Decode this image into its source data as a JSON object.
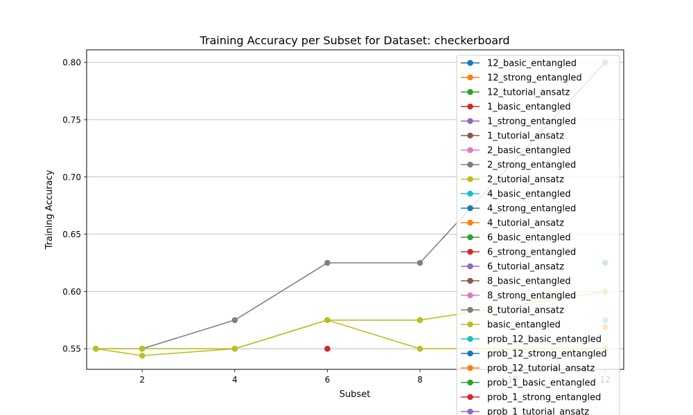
{
  "chart_data": {
    "type": "line",
    "title": "Training Accuracy per Subset for Dataset: checkerboard",
    "xlabel": "Subset",
    "ylabel": "Training Accuracy",
    "xlim": [
      0.8,
      12.4
    ],
    "ylim": [
      0.532,
      0.811
    ],
    "xticks": [
      2,
      4,
      6,
      8,
      10,
      12
    ],
    "xtick_labels": [
      "2",
      "4",
      "6",
      "8",
      "10",
      "12"
    ],
    "yticks": [
      0.55,
      0.6,
      0.65,
      0.7,
      0.75,
      0.8
    ],
    "ytick_labels": [
      "0.55",
      "0.60",
      "0.65",
      "0.70",
      "0.75",
      "0.80"
    ],
    "grid": "horizontal",
    "legend_position": "upper-right",
    "series": [
      {
        "name": "12_basic_entangled",
        "color": "#1f77b4",
        "x": [],
        "y": []
      },
      {
        "name": "12_strong_entangled",
        "color": "#ff7f0e",
        "x": [],
        "y": []
      },
      {
        "name": "12_tutorial_ansatz",
        "color": "#2ca02c",
        "x": [],
        "y": []
      },
      {
        "name": "1_basic_entangled",
        "color": "#d62728",
        "x": [
          6
        ],
        "y": [
          0.55
        ]
      },
      {
        "name": "1_strong_entangled",
        "color": "#9467bd",
        "x": [],
        "y": []
      },
      {
        "name": "1_tutorial_ansatz",
        "color": "#8c564b",
        "x": [],
        "y": []
      },
      {
        "name": "2_basic_entangled",
        "color": "#e377c2",
        "x": [
          8
        ],
        "y": [
          0.575
        ]
      },
      {
        "name": "2_strong_entangled",
        "color": "#7f7f7f",
        "x": [
          1,
          2,
          4,
          6,
          8,
          12
        ],
        "y": [
          0.55,
          0.55,
          0.575,
          0.625,
          0.625,
          0.8
        ]
      },
      {
        "name": "2_tutorial_ansatz",
        "color": "#bcbd22",
        "x": [
          1,
          2,
          4,
          6,
          8,
          12
        ],
        "y": [
          0.55,
          0.55,
          0.55,
          0.575,
          0.575,
          0.6
        ]
      },
      {
        "name": "4_basic_entangled",
        "color": "#17becf",
        "x": [
          12
        ],
        "y": [
          0.575
        ]
      },
      {
        "name": "4_strong_entangled",
        "color": "#1f77b4",
        "x": [
          12
        ],
        "y": [
          0.625
        ]
      },
      {
        "name": "4_tutorial_ansatz",
        "color": "#ff7f0e",
        "x": [
          12
        ],
        "y": [
          0.569
        ]
      },
      {
        "name": "6_basic_entangled",
        "color": "#2ca02c",
        "x": [],
        "y": []
      },
      {
        "name": "6_strong_entangled",
        "color": "#d62728",
        "x": [],
        "y": []
      },
      {
        "name": "6_tutorial_ansatz",
        "color": "#9467bd",
        "x": [],
        "y": []
      },
      {
        "name": "8_basic_entangled",
        "color": "#8c564b",
        "x": [],
        "y": []
      },
      {
        "name": "8_strong_entangled",
        "color": "#e377c2",
        "x": [],
        "y": []
      },
      {
        "name": "8_tutorial_ansatz",
        "color": "#7f7f7f",
        "x": [],
        "y": []
      },
      {
        "name": "basic_entangled",
        "color": "#bcbd22",
        "x": [
          1,
          2,
          4,
          6,
          8,
          12
        ],
        "y": [
          0.55,
          0.544,
          0.55,
          0.575,
          0.55,
          0.55
        ]
      },
      {
        "name": "prob_12_basic_entangled",
        "color": "#17becf",
        "x": [],
        "y": []
      },
      {
        "name": "prob_12_strong_entangled",
        "color": "#1f77b4",
        "x": [],
        "y": []
      },
      {
        "name": "prob_12_tutorial_ansatz",
        "color": "#ff7f0e",
        "x": [],
        "y": []
      },
      {
        "name": "prob_1_basic_entangled",
        "color": "#2ca02c",
        "x": [],
        "y": []
      },
      {
        "name": "prob_1_strong_entangled",
        "color": "#d62728",
        "x": [],
        "y": []
      },
      {
        "name": "prob_1_tutorial_ansatz",
        "color": "#9467bd",
        "x": [],
        "y": []
      }
    ]
  }
}
